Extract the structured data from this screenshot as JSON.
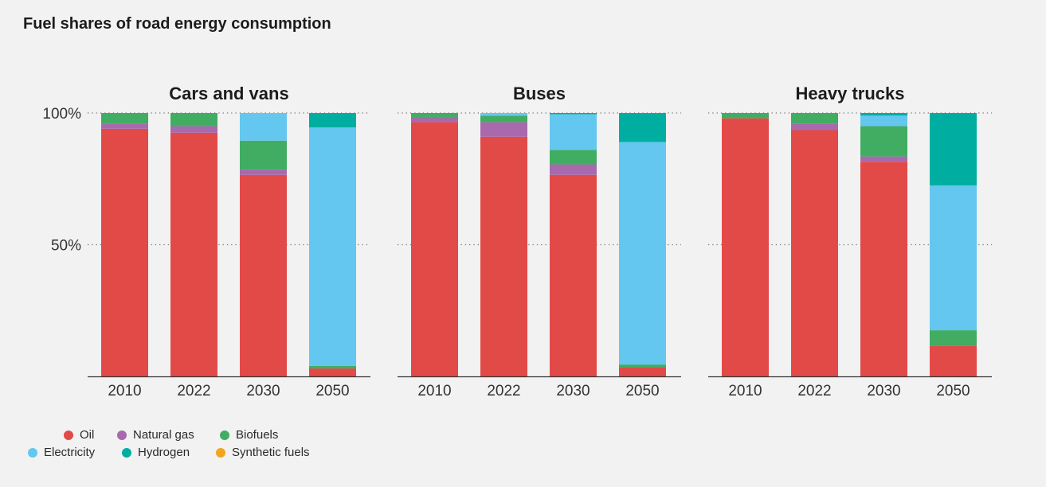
{
  "title": "Fuel shares of road energy consumption",
  "colors": {
    "oil": "#e24a48",
    "natural_gas": "#a869ad",
    "biofuels": "#41ad63",
    "electricity": "#64c7f0",
    "hydrogen": "#00aea1",
    "synthetic_fuels": "#f2a51e"
  },
  "legend": [
    {
      "label": "Oil",
      "key": "oil"
    },
    {
      "label": "Natural gas",
      "key": "natural_gas"
    },
    {
      "label": "Biofuels",
      "key": "biofuels"
    },
    {
      "label": "Electricity",
      "key": "electricity"
    },
    {
      "label": "Hydrogen",
      "key": "hydrogen"
    },
    {
      "label": "Synthetic fuels",
      "key": "synthetic_fuels"
    }
  ],
  "chart_data": {
    "type": "bar",
    "stacked": true,
    "ylim": [
      0,
      100
    ],
    "yticks": [
      {
        "value": 100,
        "label": "100%"
      },
      {
        "value": 50,
        "label": "50%"
      }
    ],
    "grid": "dotted at 50% and 100%",
    "legend_position": "bottom-left",
    "panels": [
      {
        "title": "Cars and vans",
        "categories": [
          "2010",
          "2022",
          "2030",
          "2050"
        ],
        "series": [
          {
            "name": "Oil",
            "key": "oil",
            "values": [
              94,
              92.5,
              76.5,
              3
            ]
          },
          {
            "name": "Natural gas",
            "key": "natural_gas",
            "values": [
              2,
              2.5,
              2,
              0
            ]
          },
          {
            "name": "Biofuels",
            "key": "biofuels",
            "values": [
              4,
              5,
              11,
              1
            ]
          },
          {
            "name": "Electricity",
            "key": "electricity",
            "values": [
              0,
              0,
              10.5,
              90.5
            ]
          },
          {
            "name": "Hydrogen",
            "key": "hydrogen",
            "values": [
              0,
              0,
              0,
              5.5
            ]
          },
          {
            "name": "Synthetic fuels",
            "key": "synthetic_fuels",
            "values": [
              0,
              0,
              0,
              0
            ]
          }
        ]
      },
      {
        "title": "Buses",
        "categories": [
          "2010",
          "2022",
          "2030",
          "2050"
        ],
        "series": [
          {
            "name": "Oil",
            "key": "oil",
            "values": [
              96.5,
              91,
              76.5,
              3.5
            ]
          },
          {
            "name": "Natural gas",
            "key": "natural_gas",
            "values": [
              2,
              5.5,
              4,
              0
            ]
          },
          {
            "name": "Biofuels",
            "key": "biofuels",
            "values": [
              1.5,
              2.5,
              5.5,
              1
            ]
          },
          {
            "name": "Electricity",
            "key": "electricity",
            "values": [
              0,
              1,
              13.5,
              84.5
            ]
          },
          {
            "name": "Hydrogen",
            "key": "hydrogen",
            "values": [
              0,
              0,
              0.5,
              11
            ]
          },
          {
            "name": "Synthetic fuels",
            "key": "synthetic_fuels",
            "values": [
              0,
              0,
              0,
              0
            ]
          }
        ]
      },
      {
        "title": "Heavy trucks",
        "categories": [
          "2010",
          "2022",
          "2030",
          "2050"
        ],
        "series": [
          {
            "name": "Oil",
            "key": "oil",
            "values": [
              98,
              93.5,
              81.5,
              11.5
            ]
          },
          {
            "name": "Natural gas",
            "key": "natural_gas",
            "values": [
              0,
              2.5,
              2,
              0
            ]
          },
          {
            "name": "Biofuels",
            "key": "biofuels",
            "values": [
              2,
              4,
              11.5,
              6
            ]
          },
          {
            "name": "Electricity",
            "key": "electricity",
            "values": [
              0,
              0,
              4,
              55
            ]
          },
          {
            "name": "Hydrogen",
            "key": "hydrogen",
            "values": [
              0,
              0,
              1,
              27.5
            ]
          },
          {
            "name": "Synthetic fuels",
            "key": "synthetic_fuels",
            "values": [
              0,
              0,
              0,
              0
            ]
          }
        ]
      }
    ]
  }
}
